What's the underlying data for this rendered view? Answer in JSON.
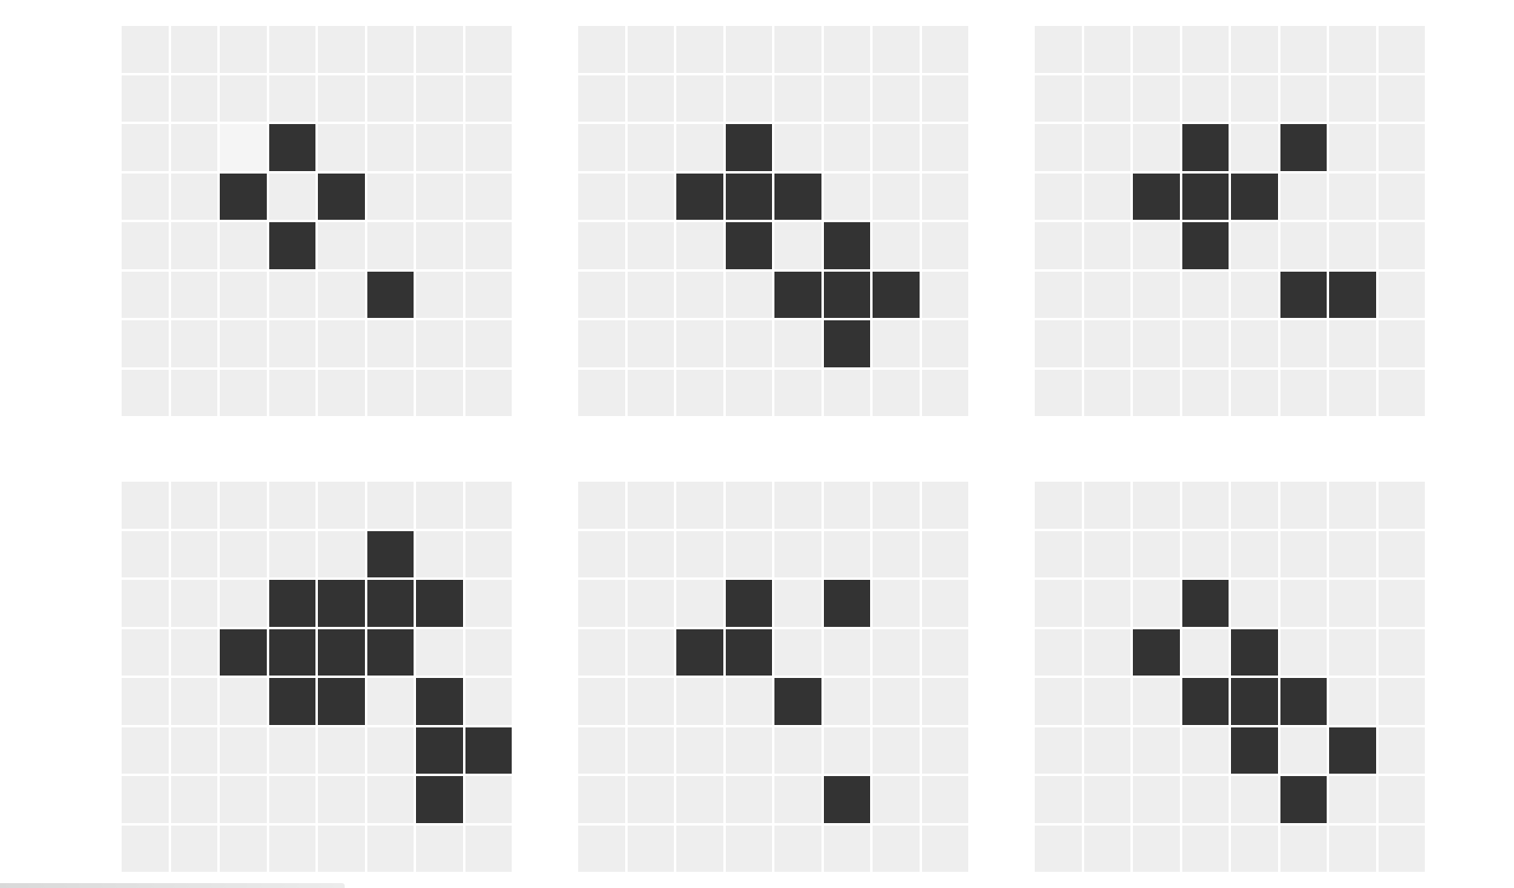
{
  "colors": {
    "alive": "#333333",
    "dead": "#eeeeee",
    "faded": "#f5f5f5",
    "background": "#ffffff"
  },
  "grid": {
    "rows": 8,
    "cols": 8
  },
  "boards": [
    {
      "id": "generation-1",
      "alive": [
        [
          2,
          3
        ],
        [
          3,
          2
        ],
        [
          3,
          4
        ],
        [
          4,
          3
        ],
        [
          5,
          5
        ]
      ],
      "faded": [
        [
          2,
          2
        ]
      ]
    },
    {
      "id": "generation-2",
      "alive": [
        [
          2,
          3
        ],
        [
          3,
          2
        ],
        [
          3,
          3
        ],
        [
          3,
          4
        ],
        [
          4,
          3
        ],
        [
          4,
          5
        ],
        [
          5,
          4
        ],
        [
          5,
          5
        ],
        [
          5,
          6
        ],
        [
          6,
          5
        ]
      ],
      "faded": []
    },
    {
      "id": "generation-3",
      "alive": [
        [
          2,
          3
        ],
        [
          2,
          5
        ],
        [
          3,
          2
        ],
        [
          3,
          3
        ],
        [
          3,
          4
        ],
        [
          4,
          3
        ],
        [
          5,
          5
        ],
        [
          5,
          6
        ]
      ],
      "faded": []
    },
    {
      "id": "generation-4",
      "alive": [
        [
          1,
          5
        ],
        [
          2,
          3
        ],
        [
          2,
          4
        ],
        [
          2,
          5
        ],
        [
          2,
          6
        ],
        [
          3,
          2
        ],
        [
          3,
          3
        ],
        [
          3,
          4
        ],
        [
          3,
          5
        ],
        [
          4,
          3
        ],
        [
          4,
          4
        ],
        [
          4,
          6
        ],
        [
          5,
          6
        ],
        [
          5,
          7
        ],
        [
          6,
          6
        ]
      ],
      "faded": []
    },
    {
      "id": "generation-5",
      "alive": [
        [
          2,
          3
        ],
        [
          2,
          5
        ],
        [
          3,
          2
        ],
        [
          3,
          3
        ],
        [
          4,
          4
        ],
        [
          6,
          5
        ]
      ],
      "faded": []
    },
    {
      "id": "generation-6",
      "alive": [
        [
          2,
          3
        ],
        [
          3,
          2
        ],
        [
          3,
          4
        ],
        [
          4,
          3
        ],
        [
          4,
          4
        ],
        [
          4,
          5
        ],
        [
          5,
          4
        ],
        [
          5,
          6
        ],
        [
          6,
          5
        ]
      ],
      "faded": []
    }
  ]
}
